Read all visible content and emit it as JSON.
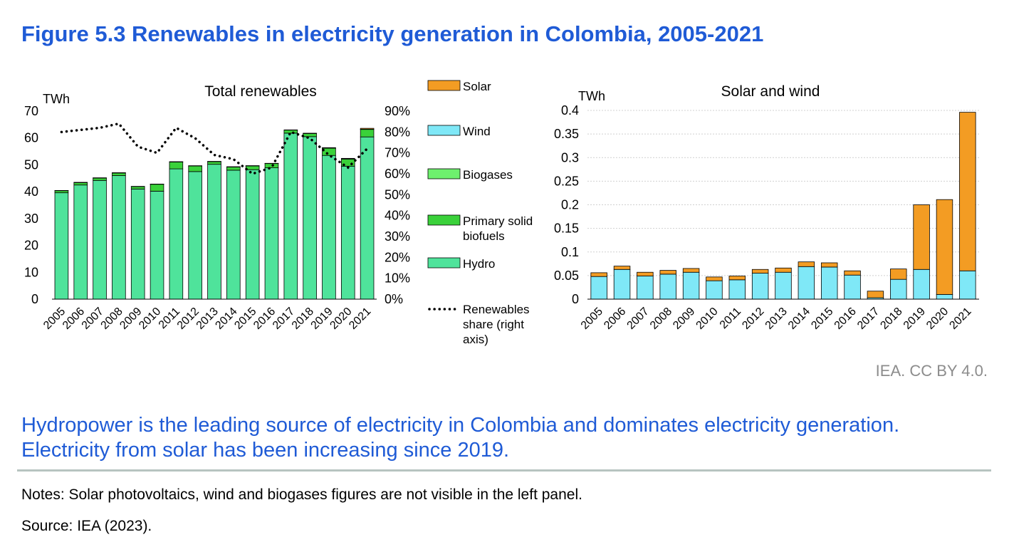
{
  "figure": {
    "title": "Figure 5.3 Renewables in electricity generation in Colombia, 2005-2021",
    "credit": "IEA. CC BY 4.0.",
    "caption": "Hydropower is the leading source of electricity in Colombia and dominates electricity generation. Electricity from solar has been increasing since 2019.",
    "notes": "Notes: Solar photovoltaics, wind and biogases figures are not visible in the left panel.",
    "source": "Source: IEA (2023)."
  },
  "colors": {
    "hydro": "#4fe39b",
    "solid_biofuels": "#3ad13a",
    "biogases": "#6ef06e",
    "wind": "#7fe8f7",
    "solar": "#f39c23",
    "share_line": "#000000",
    "gridline": "#d0d0d0",
    "title": "#1f5bd6"
  },
  "legend": [
    {
      "label": "Solar",
      "type": "box",
      "color_key": "solar"
    },
    {
      "label": "Wind",
      "type": "box",
      "color_key": "wind"
    },
    {
      "label": "Biogases",
      "type": "box",
      "color_key": "biogases"
    },
    {
      "label": "Primary solid biofuels",
      "type": "box",
      "color_key": "solid_biofuels"
    },
    {
      "label": "Hydro",
      "type": "box",
      "color_key": "hydro"
    },
    {
      "label": "Renewables share (right axis)",
      "type": "dots",
      "color_key": "share_line"
    }
  ],
  "chart_data": [
    {
      "type": "bar",
      "stacked": true,
      "title": "Total renewables",
      "ylabel": "TWh",
      "ylim": [
        0,
        70
      ],
      "yticks": [
        0,
        10,
        20,
        30,
        40,
        50,
        60,
        70
      ],
      "y2lim": [
        0,
        0.9
      ],
      "y2ticks": [
        "0%",
        "10%",
        "20%",
        "30%",
        "40%",
        "50%",
        "60%",
        "70%",
        "80%",
        "90%"
      ],
      "grid": false,
      "categories": [
        "2005",
        "2006",
        "2007",
        "2008",
        "2009",
        "2010",
        "2011",
        "2012",
        "2013",
        "2014",
        "2015",
        "2016",
        "2017",
        "2018",
        "2019",
        "2020",
        "2021"
      ],
      "series": [
        {
          "name": "Hydro",
          "color_key": "hydro",
          "values": [
            39.6,
            42.5,
            44.2,
            46.0,
            41.0,
            40.2,
            48.5,
            47.5,
            50.2,
            48.0,
            48.2,
            48.9,
            61.8,
            60.5,
            53.5,
            49.5,
            60.4
          ]
        },
        {
          "name": "Primary solid biofuels",
          "color_key": "solid_biofuels",
          "values": [
            0.8,
            0.9,
            0.9,
            1.0,
            0.9,
            2.6,
            2.6,
            2.1,
            1.0,
            1.2,
            1.4,
            1.6,
            1.2,
            1.2,
            2.7,
            2.7,
            2.8
          ]
        },
        {
          "name": "Biogases",
          "color_key": "biogases",
          "values": [
            0,
            0,
            0,
            0,
            0,
            0,
            0,
            0,
            0,
            0,
            0,
            0,
            0,
            0,
            0,
            0,
            0
          ]
        },
        {
          "name": "Wind",
          "color_key": "wind",
          "values": [
            0.05,
            0.06,
            0.05,
            0.05,
            0.06,
            0.04,
            0.04,
            0.05,
            0.06,
            0.07,
            0.07,
            0.05,
            0.003,
            0.04,
            0.06,
            0.01,
            0.06
          ]
        },
        {
          "name": "Solar",
          "color_key": "solar",
          "values": [
            0.01,
            0.01,
            0.01,
            0.01,
            0.01,
            0.01,
            0.01,
            0.01,
            0.01,
            0.01,
            0.01,
            0.01,
            0.014,
            0.02,
            0.14,
            0.2,
            0.34
          ]
        }
      ],
      "share_series": {
        "name": "Renewables share (right axis)",
        "axis": "right",
        "values": [
          0.8,
          0.81,
          0.82,
          0.84,
          0.73,
          0.7,
          0.82,
          0.77,
          0.69,
          0.67,
          0.6,
          0.63,
          0.8,
          0.77,
          0.69,
          0.63,
          0.72
        ]
      }
    },
    {
      "type": "bar",
      "stacked": true,
      "title": "Solar and wind",
      "ylabel": "TWh",
      "ylim": [
        0,
        0.4
      ],
      "yticks": [
        "0",
        "0.05",
        "0.1",
        "0.15",
        "0.2",
        "0.25",
        "0.3",
        "0.35",
        "0.4"
      ],
      "grid": true,
      "categories": [
        "2005",
        "2006",
        "2007",
        "2008",
        "2009",
        "2010",
        "2011",
        "2012",
        "2013",
        "2014",
        "2015",
        "2016",
        "2017",
        "2018",
        "2019",
        "2020",
        "2021"
      ],
      "series": [
        {
          "name": "Wind",
          "color_key": "wind",
          "values": [
            0.048,
            0.063,
            0.049,
            0.053,
            0.057,
            0.039,
            0.041,
            0.055,
            0.057,
            0.069,
            0.068,
            0.051,
            0.003,
            0.042,
            0.063,
            0.01,
            0.06
          ]
        },
        {
          "name": "Solar",
          "color_key": "solar",
          "values": [
            0.008,
            0.007,
            0.008,
            0.008,
            0.008,
            0.008,
            0.008,
            0.008,
            0.009,
            0.01,
            0.009,
            0.009,
            0.014,
            0.022,
            0.137,
            0.201,
            0.336
          ]
        }
      ]
    }
  ]
}
